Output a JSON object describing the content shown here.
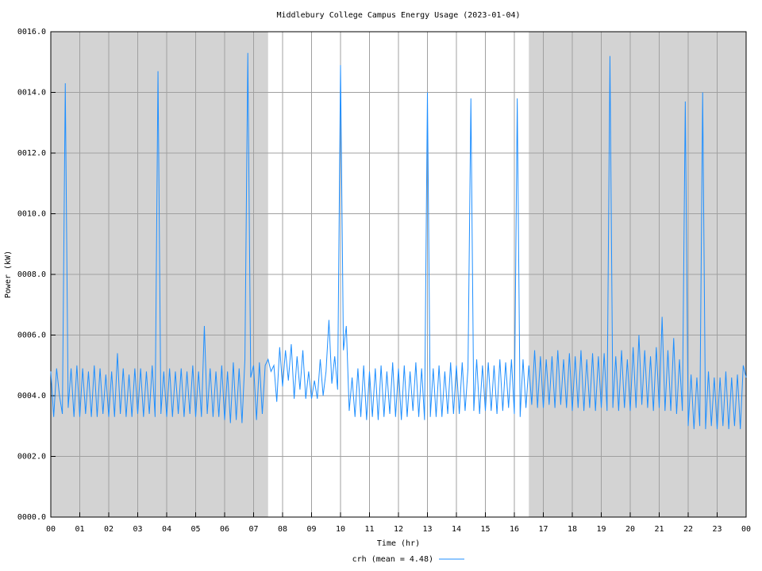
{
  "chart_data": {
    "type": "line",
    "title": "Middlebury College Campus Energy Usage (2023-01-04)",
    "x_label": "Time (hr)",
    "y_label": "Power (kW)",
    "xlim": [
      0,
      24
    ],
    "ylim": [
      0,
      16
    ],
    "xticks": [
      {
        "value": 0,
        "label": "00"
      },
      {
        "value": 1,
        "label": "01"
      },
      {
        "value": 2,
        "label": "02"
      },
      {
        "value": 3,
        "label": "03"
      },
      {
        "value": 4,
        "label": "04"
      },
      {
        "value": 5,
        "label": "05"
      },
      {
        "value": 6,
        "label": "06"
      },
      {
        "value": 7,
        "label": "07"
      },
      {
        "value": 8,
        "label": "08"
      },
      {
        "value": 9,
        "label": "09"
      },
      {
        "value": 10,
        "label": "10"
      },
      {
        "value": 11,
        "label": "11"
      },
      {
        "value": 12,
        "label": "12"
      },
      {
        "value": 13,
        "label": "13"
      },
      {
        "value": 14,
        "label": "14"
      },
      {
        "value": 15,
        "label": "15"
      },
      {
        "value": 16,
        "label": "16"
      },
      {
        "value": 17,
        "label": "17"
      },
      {
        "value": 18,
        "label": "18"
      },
      {
        "value": 19,
        "label": "19"
      },
      {
        "value": 20,
        "label": "20"
      },
      {
        "value": 21,
        "label": "21"
      },
      {
        "value": 22,
        "label": "22"
      },
      {
        "value": 23,
        "label": "23"
      },
      {
        "value": 24,
        "label": "00"
      }
    ],
    "yticks": [
      {
        "value": 0,
        "label": "0000.0"
      },
      {
        "value": 2,
        "label": "0002.0"
      },
      {
        "value": 4,
        "label": "0004.0"
      },
      {
        "value": 6,
        "label": "0006.0"
      },
      {
        "value": 8,
        "label": "0008.0"
      },
      {
        "value": 10,
        "label": "0010.0"
      },
      {
        "value": 12,
        "label": "0012.0"
      },
      {
        "value": 14,
        "label": "0014.0"
      },
      {
        "value": 16,
        "label": "0016.0"
      }
    ],
    "grid": true,
    "shading": [
      {
        "from": 0,
        "to": 7.5
      },
      {
        "from": 16.5,
        "to": 24
      }
    ],
    "shading_color": "#d3d3d3",
    "x": [
      0,
      0.1,
      0.2,
      0.3,
      0.4,
      0.5,
      0.6,
      0.7,
      0.8,
      0.9,
      1,
      1.1,
      1.2,
      1.3,
      1.4,
      1.5,
      1.6,
      1.7,
      1.8,
      1.9,
      2,
      2.1,
      2.2,
      2.3,
      2.4,
      2.5,
      2.6,
      2.7,
      2.8,
      2.9,
      3,
      3.1,
      3.2,
      3.3,
      3.4,
      3.5,
      3.6,
      3.7,
      3.8,
      3.9,
      4,
      4.1,
      4.2,
      4.3,
      4.4,
      4.5,
      4.6,
      4.7,
      4.8,
      4.9,
      5,
      5.1,
      5.2,
      5.3,
      5.4,
      5.5,
      5.6,
      5.7,
      5.8,
      5.9,
      6,
      6.1,
      6.2,
      6.3,
      6.4,
      6.5,
      6.6,
      6.7,
      6.8,
      6.9,
      7,
      7.1,
      7.2,
      7.3,
      7.4,
      7.5,
      7.6,
      7.7,
      7.8,
      7.9,
      8,
      8.1,
      8.2,
      8.3,
      8.4,
      8.5,
      8.6,
      8.7,
      8.8,
      8.9,
      9,
      9.1,
      9.2,
      9.3,
      9.4,
      9.5,
      9.6,
      9.7,
      9.8,
      9.9,
      10,
      10.1,
      10.2,
      10.3,
      10.4,
      10.5,
      10.6,
      10.7,
      10.8,
      10.9,
      11,
      11.1,
      11.2,
      11.3,
      11.4,
      11.5,
      11.6,
      11.7,
      11.8,
      11.9,
      12,
      12.1,
      12.2,
      12.3,
      12.4,
      12.5,
      12.6,
      12.7,
      12.8,
      12.9,
      13,
      13.1,
      13.2,
      13.3,
      13.4,
      13.5,
      13.6,
      13.7,
      13.8,
      13.9,
      14,
      14.1,
      14.2,
      14.3,
      14.4,
      14.5,
      14.6,
      14.7,
      14.8,
      14.9,
      15,
      15.1,
      15.2,
      15.3,
      15.4,
      15.5,
      15.6,
      15.7,
      15.8,
      15.9,
      16,
      16.1,
      16.2,
      16.3,
      16.4,
      16.5,
      16.6,
      16.7,
      16.8,
      16.9,
      17,
      17.1,
      17.2,
      17.3,
      17.4,
      17.5,
      17.6,
      17.7,
      17.8,
      17.9,
      18,
      18.1,
      18.2,
      18.3,
      18.4,
      18.5,
      18.6,
      18.7,
      18.8,
      18.9,
      19,
      19.1,
      19.2,
      19.3,
      19.4,
      19.5,
      19.6,
      19.7,
      19.8,
      19.9,
      20,
      20.1,
      20.2,
      20.3,
      20.4,
      20.5,
      20.6,
      20.7,
      20.8,
      20.9,
      21,
      21.1,
      21.2,
      21.3,
      21.4,
      21.5,
      21.6,
      21.7,
      21.8,
      21.9,
      22,
      22.1,
      22.2,
      22.3,
      22.4,
      22.5,
      22.6,
      22.7,
      22.8,
      22.9,
      23,
      23.1,
      23.2,
      23.3,
      23.4,
      23.5,
      23.6,
      23.7,
      23.8,
      23.9,
      24
    ],
    "series": [
      {
        "name": "crh (mean = 4.48)",
        "color": "#1f8fff",
        "values": [
          4.8,
          3.3,
          4.9,
          4.0,
          3.4,
          14.3,
          3.6,
          4.9,
          3.3,
          5.0,
          3.3,
          4.9,
          3.4,
          4.8,
          3.3,
          5.0,
          3.3,
          4.9,
          3.4,
          4.7,
          3.3,
          4.8,
          3.3,
          5.4,
          3.4,
          4.9,
          3.3,
          4.7,
          3.3,
          4.9,
          3.4,
          4.9,
          3.3,
          4.8,
          3.4,
          5.0,
          3.3,
          14.7,
          3.4,
          4.8,
          3.3,
          4.9,
          3.3,
          4.8,
          3.4,
          4.9,
          3.3,
          4.8,
          3.4,
          5.0,
          3.3,
          4.8,
          3.3,
          6.3,
          3.4,
          4.9,
          3.3,
          4.8,
          3.3,
          5.0,
          3.2,
          4.8,
          3.1,
          5.1,
          3.2,
          4.9,
          3.1,
          5.2,
          15.3,
          4.6,
          5.0,
          3.2,
          5.1,
          3.4,
          5.0,
          5.2,
          4.8,
          5.0,
          3.8,
          5.6,
          4.3,
          5.5,
          4.5,
          5.7,
          3.9,
          5.3,
          4.2,
          5.5,
          3.9,
          4.8,
          3.9,
          4.5,
          3.9,
          5.2,
          4.0,
          4.8,
          6.5,
          4.4,
          5.3,
          4.2,
          14.9,
          5.5,
          6.3,
          3.5,
          4.6,
          3.3,
          4.9,
          3.3,
          5.0,
          3.2,
          4.8,
          3.3,
          4.9,
          3.2,
          5.0,
          3.3,
          4.8,
          3.4,
          5.1,
          3.3,
          4.9,
          3.2,
          5.0,
          3.3,
          4.8,
          3.5,
          5.1,
          3.3,
          4.9,
          3.2,
          14.0,
          3.3,
          4.9,
          3.3,
          5.0,
          3.3,
          4.8,
          3.4,
          5.1,
          3.4,
          5.0,
          3.4,
          5.1,
          3.5,
          4.9,
          13.8,
          3.5,
          5.2,
          3.4,
          5.0,
          3.5,
          5.1,
          3.5,
          5.0,
          3.4,
          5.2,
          3.5,
          5.1,
          3.6,
          5.2,
          3.4,
          13.8,
          3.3,
          5.2,
          3.6,
          5.0,
          3.7,
          5.5,
          3.6,
          5.3,
          3.6,
          5.2,
          3.7,
          5.3,
          3.6,
          5.5,
          3.7,
          5.2,
          3.6,
          5.4,
          3.5,
          5.3,
          3.6,
          5.5,
          3.5,
          5.2,
          3.6,
          5.4,
          3.5,
          5.3,
          3.6,
          5.4,
          3.5,
          15.2,
          3.6,
          5.3,
          3.5,
          5.5,
          3.6,
          5.2,
          3.5,
          5.6,
          3.6,
          6.0,
          3.7,
          5.5,
          3.6,
          5.3,
          3.5,
          5.6,
          3.6,
          6.6,
          3.5,
          5.5,
          3.5,
          5.9,
          3.4,
          5.2,
          3.5,
          13.7,
          3.0,
          4.7,
          2.9,
          4.6,
          3.0,
          14.0,
          2.9,
          4.8,
          3.0,
          4.6,
          2.9,
          4.6,
          3.0,
          4.8,
          2.9,
          4.6,
          3.0,
          4.7,
          2.9,
          5.0,
          4.6
        ]
      }
    ]
  }
}
